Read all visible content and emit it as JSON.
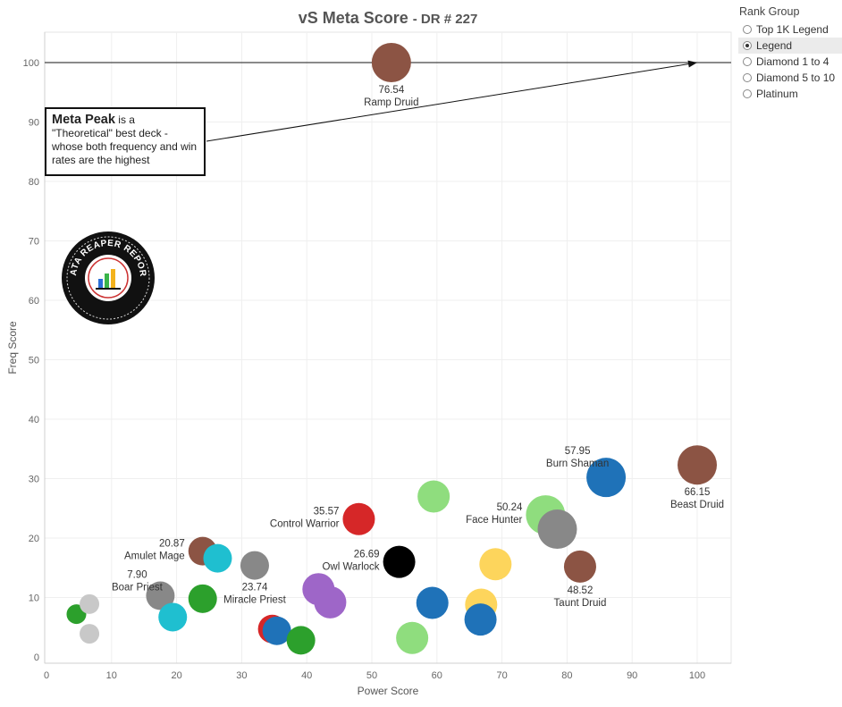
{
  "title": {
    "main": "vS Meta Score",
    "sub": "- DR # 227"
  },
  "legend": {
    "title": "Rank Group",
    "options": [
      "Top 1K Legend",
      "Legend",
      "Diamond 1 to 4",
      "Diamond 5 to 10",
      "Platinum"
    ],
    "selected": "Legend"
  },
  "annotation": {
    "bold": "Meta Peak",
    "text": "is a \"Theoretical\" best deck - whose both frequency and win rates are the highest"
  },
  "logo": {
    "text": "DATA REAPER REPORT"
  },
  "colors": {
    "druid": "#8c5444",
    "shaman": "#1f72b8",
    "hunter": "#8fdd7e",
    "warrior": "#d62728",
    "warlock": "#9e66c8",
    "priest": "#888888",
    "mage": "#1fbfd0",
    "rogue": "#2ca02c",
    "paladin": "#fdd55c",
    "demonhunter": "#000000",
    "other": "#c8c8c8"
  },
  "chart_data": {
    "type": "scatter",
    "xlabel": "Power Score",
    "ylabel": "Freq Score",
    "xlim": [
      0,
      105
    ],
    "ylim": [
      -1,
      105
    ],
    "xticks": [
      0,
      10,
      20,
      30,
      40,
      50,
      60,
      70,
      80,
      90,
      100
    ],
    "yticks": [
      0,
      10,
      20,
      30,
      40,
      50,
      60,
      70,
      80,
      90,
      100
    ],
    "reference_line_y": 100,
    "meta_peak": [
      100,
      100
    ],
    "grid": true,
    "points": [
      {
        "x": 53,
        "y": 100,
        "cls": "druid",
        "size": "large",
        "label": "Ramp Druid",
        "score": "76.54"
      },
      {
        "x": 100,
        "y": 32.3,
        "cls": "druid",
        "size": "large",
        "label": "Beast Druid",
        "score": "66.15"
      },
      {
        "x": 86,
        "y": 30.2,
        "cls": "shaman",
        "size": "large",
        "label": "Burn Shaman",
        "score": "57.95"
      },
      {
        "x": 76.7,
        "y": 23.9,
        "cls": "hunter",
        "size": "large",
        "label": "Face Hunter",
        "score": "50.24"
      },
      {
        "x": 78.5,
        "y": 21.5,
        "cls": "priest",
        "size": "large",
        "label": "",
        "score": ""
      },
      {
        "x": 82,
        "y": 15.2,
        "cls": "druid",
        "size": "medium",
        "label": "Taunt Druid",
        "score": "48.52"
      },
      {
        "x": 59.5,
        "y": 27,
        "cls": "hunter",
        "size": "medium",
        "label": "",
        "score": ""
      },
      {
        "x": 48,
        "y": 23.2,
        "cls": "warrior",
        "size": "medium",
        "label": "Control Warrior",
        "score": "35.57"
      },
      {
        "x": 54.2,
        "y": 16,
        "cls": "demonhunter",
        "size": "medium",
        "label": "Owl Warlock",
        "score": "26.69"
      },
      {
        "x": 69,
        "y": 15.6,
        "cls": "paladin",
        "size": "medium",
        "label": "",
        "score": ""
      },
      {
        "x": 59.3,
        "y": 9.1,
        "cls": "shaman",
        "size": "medium",
        "label": "",
        "score": ""
      },
      {
        "x": 66.8,
        "y": 8.8,
        "cls": "paladin",
        "size": "medium",
        "label": "",
        "score": ""
      },
      {
        "x": 66.7,
        "y": 6.3,
        "cls": "shaman",
        "size": "medium",
        "label": "",
        "score": ""
      },
      {
        "x": 56.2,
        "y": 3.2,
        "cls": "hunter",
        "size": "medium",
        "label": "",
        "score": ""
      },
      {
        "x": 41.8,
        "y": 11.4,
        "cls": "warlock",
        "size": "medium",
        "label": "",
        "score": ""
      },
      {
        "x": 43.6,
        "y": 9.2,
        "cls": "warlock",
        "size": "medium",
        "label": "",
        "score": ""
      },
      {
        "x": 32,
        "y": 15.4,
        "cls": "priest",
        "size": "small",
        "label": "Miracle Priest",
        "score": "23.74"
      },
      {
        "x": 24,
        "y": 17.8,
        "cls": "druid",
        "size": "small",
        "label": "Amulet Mage",
        "score": "20.87"
      },
      {
        "x": 26.3,
        "y": 16.6,
        "cls": "mage",
        "size": "small",
        "label": "",
        "score": ""
      },
      {
        "x": 17.5,
        "y": 10.3,
        "cls": "priest",
        "size": "small",
        "label": "Boar Priest",
        "score": "7.90"
      },
      {
        "x": 24,
        "y": 9.8,
        "cls": "rogue",
        "size": "small",
        "label": "",
        "score": ""
      },
      {
        "x": 19.4,
        "y": 6.7,
        "cls": "mage",
        "size": "small",
        "label": "",
        "score": ""
      },
      {
        "x": 34.7,
        "y": 4.7,
        "cls": "warrior",
        "size": "small",
        "label": "",
        "score": ""
      },
      {
        "x": 35.4,
        "y": 4.4,
        "cls": "shaman",
        "size": "small",
        "label": "",
        "score": ""
      },
      {
        "x": 39.1,
        "y": 2.8,
        "cls": "rogue",
        "size": "small",
        "label": "",
        "score": ""
      },
      {
        "x": 4.6,
        "y": 7.2,
        "cls": "rogue",
        "size": "tiny",
        "label": "",
        "score": ""
      },
      {
        "x": 6.6,
        "y": 8.9,
        "cls": "other",
        "size": "tiny",
        "label": "",
        "score": ""
      },
      {
        "x": 6.6,
        "y": 3.9,
        "cls": "other",
        "size": "tiny",
        "label": "",
        "score": ""
      }
    ]
  }
}
